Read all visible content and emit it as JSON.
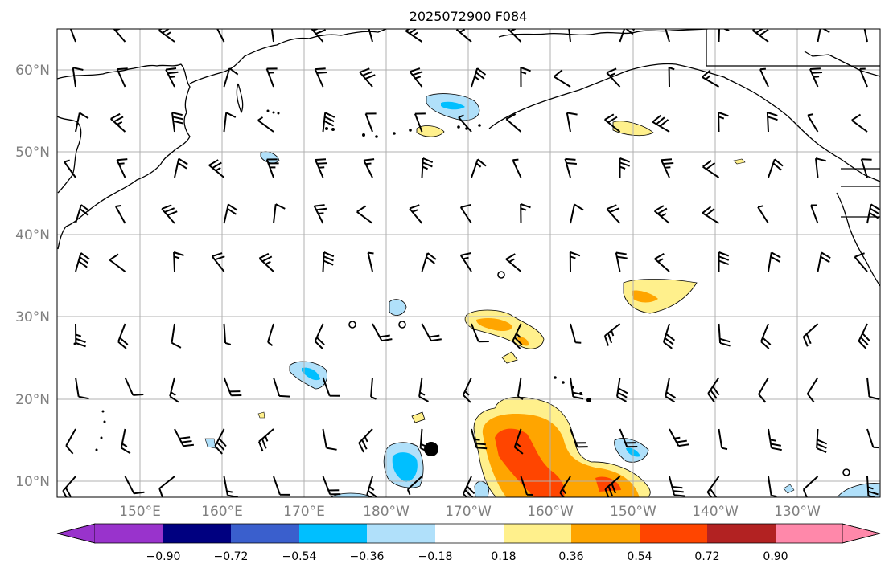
{
  "title": "2025072900 F084",
  "lat_labels": [
    "60°N",
    "50°N",
    "40°N",
    "30°N",
    "20°N",
    "10°N"
  ],
  "lon_labels": [
    "150°E",
    "160°E",
    "170°E",
    "180°W",
    "170°W",
    "160°W",
    "150°W",
    "140°W",
    "130°W"
  ],
  "colorbar": {
    "tick_labels": [
      "−0.90",
      "−0.72",
      "−0.54",
      "−0.36",
      "−0.18",
      "0.18",
      "0.36",
      "0.54",
      "0.72",
      "0.90"
    ],
    "colors": [
      "#9933cc",
      "#000080",
      "#3a5fcd",
      "#00bfff",
      "#b0e0fa",
      "#ffffff",
      "#fff08c",
      "#ffa500",
      "#ff4500",
      "#b22222",
      "#ff88aa"
    ]
  },
  "contour_colors": {
    "neg_light": "#b0e0fa",
    "neg_mid": "#00bfff",
    "pos_light": "#fff08c",
    "pos_mid": "#ffa500",
    "pos_strong": "#ff4500"
  },
  "wind_barbs": true
}
